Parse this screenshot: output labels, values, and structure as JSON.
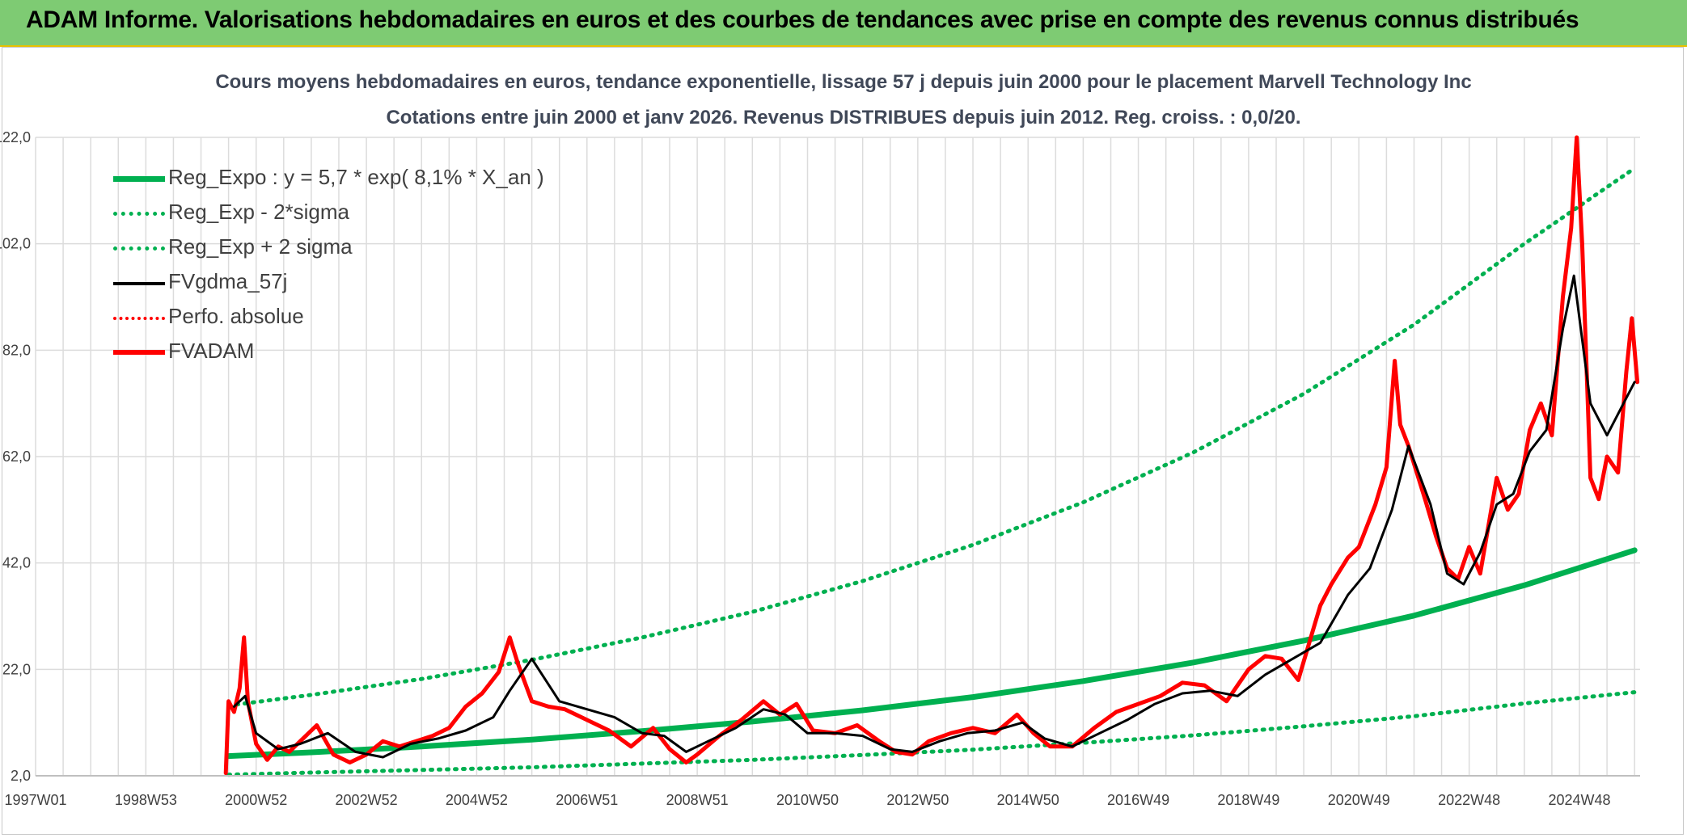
{
  "banner": {
    "title": "ADAM Informe. Valorisations hebdomadaires en euros et des courbes de tendances avec prise en compte des revenus connus distribués"
  },
  "colors": {
    "banner_bg": "#7ecb73",
    "green": "#00b050",
    "red": "#ff0000",
    "black": "#000000"
  },
  "chart_data": {
    "type": "line",
    "title": "Cours moyens hebdomadaires en euros, tendance exponentielle, lissage 57 j depuis juin 2000 pour le placement Marvell Technology Inc",
    "subtitle": "Cotations entre juin 2000 et janv 2026. Revenus DISTRIBUES depuis juin 2012. Reg. croiss. : 0,0/20.",
    "xlabel": "",
    "ylabel": "",
    "xlim": [
      1997.0,
      2026.1
    ],
    "ylim": [
      2.0,
      122.0
    ],
    "grid": true,
    "y_ticks": [
      "2,0",
      "22,0",
      "42,0",
      "62,0",
      "82,0",
      "102,0",
      "122,0"
    ],
    "y_tick_values": [
      2,
      22,
      42,
      62,
      82,
      102,
      122
    ],
    "x_ticks": [
      "1997W01",
      "1998W53",
      "2000W52",
      "2002W52",
      "2004W52",
      "2006W51",
      "2008W51",
      "2010W50",
      "2012W50",
      "2014W50",
      "2016W49",
      "2018W49",
      "2020W49",
      "2022W48",
      "2024W48"
    ],
    "x_tick_values": [
      1997.0,
      1999.0,
      2001.0,
      2003.0,
      2005.0,
      2007.0,
      2009.0,
      2011.0,
      2013.0,
      2015.0,
      2017.0,
      2019.0,
      2021.0,
      2023.0,
      2025.0
    ],
    "legend_position": "top-left",
    "series": [
      {
        "name": "Reg_Expo : y = 5,7 * exp( 8,1% *  X_an )",
        "style": "solid-thick",
        "color": "#00b050",
        "x": [
          2000.5,
          2002,
          2004,
          2006,
          2008,
          2010,
          2012,
          2014,
          2016,
          2018,
          2020,
          2022,
          2024,
          2026
        ],
        "values": [
          5.7,
          6.4,
          7.5,
          8.8,
          10.4,
          12.2,
          14.3,
          16.8,
          19.8,
          23.3,
          27.4,
          32.1,
          37.8,
          44.4
        ]
      },
      {
        "name": "Reg_Exp - 2*sigma",
        "style": "dotted",
        "color": "#00b050",
        "x": [
          2000.5,
          2002,
          2004,
          2006,
          2008,
          2010,
          2012,
          2014,
          2016,
          2018,
          2020,
          2022,
          2024,
          2026
        ],
        "values": [
          2.2,
          2.6,
          3.1,
          3.6,
          4.3,
          5.0,
          5.9,
          6.9,
          8.2,
          9.6,
          11.3,
          13.2,
          15.6,
          17.7
        ]
      },
      {
        "name": "Reg_Exp + 2 sigma",
        "style": "dotted",
        "color": "#00b050",
        "x": [
          2000.5,
          2002,
          2004,
          2006,
          2008,
          2010,
          2012,
          2014,
          2016,
          2018,
          2020,
          2022,
          2024,
          2026
        ],
        "values": [
          15.2,
          17.2,
          20.2,
          23.8,
          28.0,
          32.8,
          38.6,
          45.4,
          53.4,
          62.8,
          73.8,
          86.8,
          102.0,
          116.2
        ]
      },
      {
        "name": "FVgdma_57j",
        "style": "solid",
        "color": "#000000",
        "x": [
          2000.6,
          2000.8,
          2001.0,
          2001.4,
          2001.8,
          2002.3,
          2002.8,
          2003.3,
          2003.8,
          2004.3,
          2004.8,
          2005.3,
          2005.6,
          2006.0,
          2006.5,
          2007.0,
          2007.5,
          2008.0,
          2008.4,
          2008.8,
          2009.2,
          2009.7,
          2010.2,
          2010.6,
          2011.0,
          2011.5,
          2012.0,
          2012.5,
          2012.9,
          2013.4,
          2013.9,
          2014.4,
          2014.9,
          2015.3,
          2015.8,
          2016.3,
          2016.8,
          2017.3,
          2017.8,
          2018.3,
          2018.8,
          2019.3,
          2019.8,
          2020.3,
          2020.8,
          2021.2,
          2021.6,
          2021.9,
          2022.3,
          2022.6,
          2022.9,
          2023.2,
          2023.5,
          2023.8,
          2024.1,
          2024.4,
          2024.7,
          2024.9,
          2025.2,
          2025.5,
          2025.8,
          2026.0
        ],
        "values": [
          15.0,
          17.0,
          10.0,
          7.0,
          8.0,
          10.0,
          6.5,
          5.5,
          8.0,
          9.0,
          10.5,
          13.0,
          18.0,
          24.0,
          16.0,
          14.5,
          13.0,
          10.0,
          9.5,
          6.5,
          8.5,
          11.0,
          14.5,
          13.5,
          10.0,
          10.0,
          9.5,
          7.0,
          6.5,
          8.5,
          10.0,
          10.5,
          12.0,
          9.0,
          7.5,
          10.0,
          12.5,
          15.5,
          17.5,
          18.0,
          17.0,
          21.0,
          24.0,
          27.0,
          36.0,
          41.0,
          52.0,
          64.0,
          53.0,
          40.0,
          38.0,
          44.0,
          53.0,
          55.0,
          63.0,
          67.0,
          86.0,
          96.0,
          72.0,
          66.0,
          72.0,
          76.0
        ]
      },
      {
        "name": "Perfo. absolue",
        "style": "dotted",
        "color": "#ff0000",
        "x": [],
        "values": []
      },
      {
        "name": "FVADAM",
        "style": "solid-thick",
        "color": "#ff0000",
        "x": [
          2000.45,
          2000.5,
          2000.6,
          2000.7,
          2000.78,
          2000.85,
          2001.0,
          2001.2,
          2001.4,
          2001.6,
          2001.8,
          2002.1,
          2002.4,
          2002.7,
          2003.0,
          2003.3,
          2003.6,
          2003.9,
          2004.2,
          2004.5,
          2004.8,
          2005.1,
          2005.4,
          2005.6,
          2005.75,
          2006.0,
          2006.3,
          2006.6,
          2007.0,
          2007.4,
          2007.8,
          2008.2,
          2008.5,
          2008.8,
          2009.0,
          2009.4,
          2009.8,
          2010.2,
          2010.5,
          2010.8,
          2011.1,
          2011.5,
          2011.9,
          2012.3,
          2012.6,
          2012.9,
          2013.2,
          2013.6,
          2014.0,
          2014.4,
          2014.8,
          2015.1,
          2015.4,
          2015.8,
          2016.2,
          2016.6,
          2017.0,
          2017.4,
          2017.8,
          2018.2,
          2018.6,
          2019.0,
          2019.3,
          2019.6,
          2019.9,
          2020.1,
          2020.3,
          2020.5,
          2020.8,
          2021.0,
          2021.3,
          2021.5,
          2021.65,
          2021.75,
          2021.9,
          2022.2,
          2022.4,
          2022.6,
          2022.8,
          2023.0,
          2023.2,
          2023.4,
          2023.5,
          2023.7,
          2023.9,
          2024.1,
          2024.3,
          2024.5,
          2024.7,
          2024.85,
          2024.95,
          2025.05,
          2025.2,
          2025.35,
          2025.5,
          2025.7,
          2025.85,
          2025.95,
          2026.05
        ],
        "values": [
          2.5,
          16.0,
          14.0,
          18.5,
          28.0,
          16.0,
          8.0,
          5.0,
          7.5,
          6.5,
          8.5,
          11.5,
          6.0,
          4.5,
          6.0,
          8.5,
          7.5,
          8.5,
          9.5,
          11.0,
          15.0,
          17.5,
          21.5,
          28.0,
          23.0,
          16.0,
          15.0,
          14.5,
          12.5,
          10.5,
          7.5,
          11.0,
          7.0,
          4.5,
          6.0,
          9.5,
          12.5,
          16.0,
          13.5,
          15.5,
          10.5,
          10.0,
          11.5,
          8.5,
          6.5,
          6.0,
          8.5,
          10.0,
          11.0,
          10.0,
          13.5,
          10.0,
          7.5,
          7.5,
          11.0,
          14.0,
          15.5,
          17.0,
          19.5,
          19.0,
          16.0,
          22.0,
          24.5,
          24.0,
          20.0,
          27.0,
          34.0,
          38.0,
          43.0,
          45.0,
          53.0,
          60.0,
          80.0,
          68.0,
          64.0,
          54.0,
          47.0,
          41.0,
          39.0,
          45.0,
          40.0,
          52.0,
          58.0,
          52.0,
          55.0,
          67.0,
          72.0,
          66.0,
          92.0,
          105.0,
          122.0,
          102.0,
          58.0,
          54.0,
          62.0,
          59.0,
          78.0,
          88.0,
          76.0
        ]
      }
    ]
  }
}
